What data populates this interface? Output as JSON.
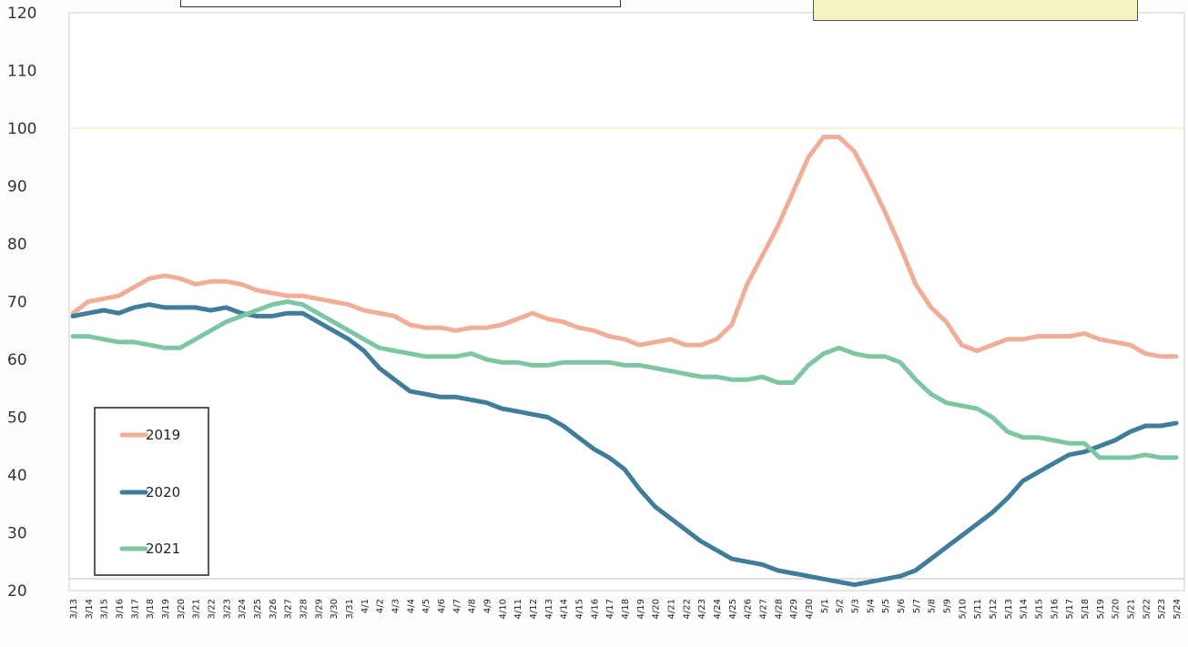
{
  "chart_data": {
    "type": "line",
    "title": "",
    "xlabel": "",
    "ylabel": "",
    "ylim": [
      20,
      120
    ],
    "yticks": [
      20,
      30,
      40,
      50,
      60,
      70,
      80,
      90,
      100,
      110,
      120
    ],
    "grid": false,
    "legend_position": "lower-left",
    "reference_line": 100,
    "categories": [
      "3/13",
      "3/14",
      "3/15",
      "3/16",
      "3/17",
      "3/18",
      "3/19",
      "3/20",
      "3/21",
      "3/22",
      "3/23",
      "3/24",
      "3/25",
      "3/26",
      "3/27",
      "3/28",
      "3/29",
      "3/30",
      "3/31",
      "4/1",
      "4/2",
      "4/3",
      "4/4",
      "4/5",
      "4/6",
      "4/7",
      "4/8",
      "4/9",
      "4/10",
      "4/11",
      "4/12",
      "4/13",
      "4/14",
      "4/15",
      "4/16",
      "4/17",
      "4/18",
      "4/19",
      "4/20",
      "4/21",
      "4/22",
      "4/23",
      "4/24",
      "4/25",
      "4/26",
      "4/27",
      "4/28",
      "4/29",
      "4/30",
      "5/1",
      "5/2",
      "5/3",
      "5/4",
      "5/5",
      "5/6",
      "5/7",
      "5/8",
      "5/9",
      "5/10",
      "5/11",
      "5/12",
      "5/13",
      "5/14",
      "5/15",
      "5/16",
      "5/17",
      "5/18",
      "5/19",
      "5/20",
      "5/21",
      "5/22",
      "5/23",
      "5/24"
    ],
    "series": [
      {
        "name": "2019",
        "color": "#f0ae98",
        "values": [
          68,
          70,
          70.5,
          71,
          72.5,
          74,
          74.5,
          74,
          73,
          73.5,
          73.5,
          73,
          72,
          71.5,
          71,
          71,
          70.5,
          70,
          69.5,
          68.5,
          68,
          67.5,
          66,
          65.5,
          65.5,
          65,
          65.5,
          65.5,
          66,
          67,
          68,
          67,
          66.5,
          65.5,
          65,
          64,
          63.5,
          62.5,
          63,
          63.5,
          62.5,
          62.5,
          63.5,
          66,
          73,
          78,
          83,
          89,
          95,
          98.5,
          98.5,
          96,
          91,
          85.5,
          79.5,
          73,
          69,
          66.5,
          62.5,
          61.5,
          62.5,
          63.5,
          63.5,
          64,
          64,
          64,
          64.5,
          63.5,
          63,
          62.5,
          61,
          60.5,
          60.5
        ]
      },
      {
        "name": "2020",
        "color": "#3f7d9a",
        "values": [
          67.5,
          68,
          68.5,
          68,
          69,
          69.5,
          69,
          69,
          69,
          68.5,
          69,
          68,
          67.5,
          67.5,
          68,
          68,
          66.5,
          65,
          63.5,
          61.5,
          58.5,
          56.5,
          54.5,
          54,
          53.5,
          53.5,
          53,
          52.5,
          51.5,
          51,
          50.5,
          50,
          48.5,
          46.5,
          44.5,
          43,
          41,
          37.5,
          34.5,
          32.5,
          30.5,
          28.5,
          27,
          25.5,
          25,
          24.5,
          23.5,
          23,
          22.5,
          22,
          21.5,
          21,
          21.5,
          22,
          22.5,
          23.5,
          25.5,
          27.5,
          29.5,
          31.5,
          33.5,
          36,
          39,
          40.5,
          42,
          43.5,
          44,
          45,
          46,
          47.5,
          48.5,
          48.5,
          49
        ]
      },
      {
        "name": "2021",
        "color": "#7cc6a2",
        "values": [
          64,
          64,
          63.5,
          63,
          63,
          62.5,
          62,
          62,
          63.5,
          65,
          66.5,
          67.5,
          68.5,
          69.5,
          70,
          69.5,
          68,
          66.5,
          65,
          63.5,
          62,
          61.5,
          61,
          60.5,
          60.5,
          60.5,
          61,
          60,
          59.5,
          59.5,
          59,
          59,
          59.5,
          59.5,
          59.5,
          59.5,
          59,
          59,
          58.5,
          58,
          57.5,
          57,
          57,
          56.5,
          56.5,
          57,
          56,
          56,
          59,
          61,
          62,
          61,
          60.5,
          60.5,
          59.5,
          56.5,
          54,
          52.5,
          52,
          51.5,
          50,
          47.5,
          46.5,
          46.5,
          46,
          45.5,
          45.5,
          43,
          43,
          43,
          43.5,
          43,
          43
        ]
      }
    ]
  }
}
